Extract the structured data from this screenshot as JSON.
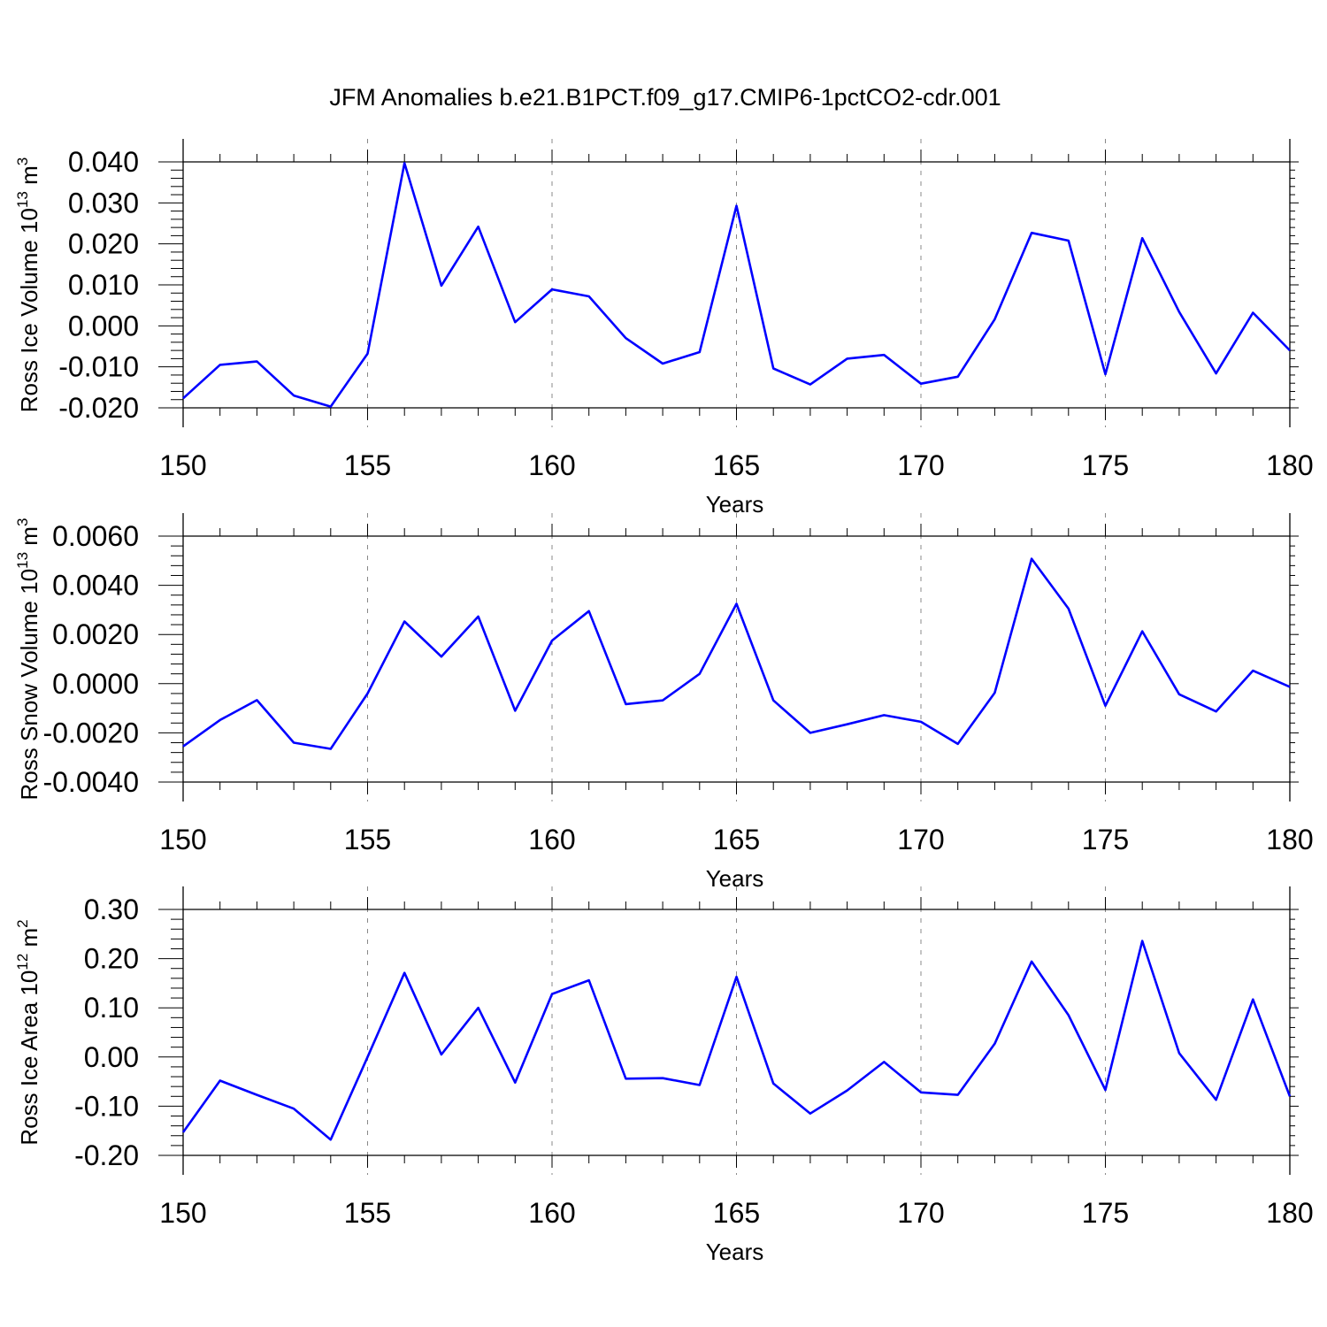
{
  "title": "JFM Anomalies b.e21.B1PCT.f09_g17.CMIP6-1pctCO2-cdr.001",
  "colors": {
    "series": "#0000ff",
    "grid": "#888888",
    "axis": "#000000"
  },
  "chart_data": [
    {
      "type": "line",
      "name": "ross-ice-volume",
      "ylabel": "Ross Ice Volume",
      "ylabel_exp": "13",
      "ylabel_unit": "m",
      "ylabel_unit_exp": "3",
      "ylabel_base": "10",
      "xlabel": "Years",
      "xlim": [
        150,
        180
      ],
      "ylim": [
        -0.02,
        0.04
      ],
      "yticks": [
        -0.02,
        -0.01,
        0.0,
        0.01,
        0.02,
        0.03,
        0.04
      ],
      "ytick_labels": [
        "-0.020",
        "-0.010",
        "0.000",
        "0.010",
        "0.020",
        "0.030",
        "0.040"
      ],
      "xticks": [
        150,
        155,
        160,
        165,
        170,
        175,
        180
      ],
      "xtick_labels": [
        "150",
        "155",
        "160",
        "165",
        "170",
        "175",
        "180"
      ],
      "x": [
        150,
        151,
        152,
        153,
        154,
        155,
        156,
        157,
        158,
        159,
        160,
        161,
        162,
        163,
        164,
        165,
        166,
        167,
        168,
        169,
        170,
        171,
        172,
        173,
        174,
        175,
        176,
        177,
        178,
        179,
        180
      ],
      "values": [
        -0.0177,
        -0.0095,
        -0.0087,
        -0.017,
        -0.0197,
        -0.0068,
        0.0397,
        0.0098,
        0.0242,
        0.0009,
        0.0089,
        0.0072,
        -0.003,
        -0.0092,
        -0.0064,
        0.0293,
        -0.0104,
        -0.0143,
        -0.008,
        -0.0071,
        -0.0141,
        -0.0124,
        0.0016,
        0.0227,
        0.0208,
        -0.0118,
        0.0214,
        0.0034,
        -0.0116,
        0.0032,
        -0.006
      ]
    },
    {
      "type": "line",
      "name": "ross-snow-volume",
      "ylabel": "Ross Snow Volume",
      "ylabel_exp": "13",
      "ylabel_unit": "m",
      "ylabel_unit_exp": "3",
      "ylabel_base": "10",
      "xlabel": "Years",
      "xlim": [
        150,
        180
      ],
      "ylim": [
        -0.004,
        0.006
      ],
      "yticks": [
        -0.004,
        -0.002,
        0.0,
        0.002,
        0.004,
        0.006
      ],
      "ytick_labels": [
        "-0.0040",
        "-0.0020",
        "0.0000",
        "0.0020",
        "0.0040",
        "0.0060"
      ],
      "xticks": [
        150,
        155,
        160,
        165,
        170,
        175,
        180
      ],
      "xtick_labels": [
        "150",
        "155",
        "160",
        "165",
        "170",
        "175",
        "180"
      ],
      "x": [
        150,
        151,
        152,
        153,
        154,
        155,
        156,
        157,
        158,
        159,
        160,
        161,
        162,
        163,
        164,
        165,
        166,
        167,
        168,
        169,
        170,
        171,
        172,
        173,
        174,
        175,
        176,
        177,
        178,
        179,
        180
      ],
      "values": [
        -0.00255,
        -0.00148,
        -0.00067,
        -0.0024,
        -0.00265,
        -0.0004,
        0.00253,
        0.0011,
        0.00273,
        -0.0011,
        0.00175,
        0.00295,
        -0.00083,
        -0.00068,
        0.0004,
        0.00325,
        -0.00068,
        -0.002,
        -0.00165,
        -0.00128,
        -0.00155,
        -0.00245,
        -0.00037,
        0.00508,
        0.00305,
        -0.0009,
        0.00213,
        -0.00043,
        -0.00113,
        0.00053,
        -0.00013
      ]
    },
    {
      "type": "line",
      "name": "ross-ice-area",
      "ylabel": "Ross Ice Area",
      "ylabel_exp": "12",
      "ylabel_unit": "m",
      "ylabel_unit_exp": "2",
      "ylabel_base": "10",
      "xlabel": "Years",
      "xlim": [
        150,
        180
      ],
      "ylim": [
        -0.2,
        0.3
      ],
      "yticks": [
        -0.2,
        -0.1,
        0.0,
        0.1,
        0.2,
        0.3
      ],
      "ytick_labels": [
        "-0.20",
        "-0.10",
        "0.00",
        "0.10",
        "0.20",
        "0.30"
      ],
      "xticks": [
        150,
        155,
        160,
        165,
        170,
        175,
        180
      ],
      "xtick_labels": [
        "150",
        "155",
        "160",
        "165",
        "170",
        "175",
        "180"
      ],
      "x": [
        150,
        151,
        152,
        153,
        154,
        155,
        156,
        157,
        158,
        159,
        160,
        161,
        162,
        163,
        164,
        165,
        166,
        167,
        168,
        169,
        170,
        171,
        172,
        173,
        174,
        175,
        176,
        177,
        178,
        179,
        180
      ],
      "values": [
        -0.153,
        -0.048,
        -0.077,
        -0.105,
        -0.168,
        0.0,
        0.171,
        0.005,
        0.1,
        -0.052,
        0.128,
        0.156,
        -0.044,
        -0.043,
        -0.057,
        0.163,
        -0.054,
        -0.115,
        -0.068,
        -0.01,
        -0.072,
        -0.077,
        0.027,
        0.194,
        0.085,
        -0.067,
        0.236,
        0.008,
        -0.087,
        0.117,
        -0.08
      ]
    }
  ]
}
